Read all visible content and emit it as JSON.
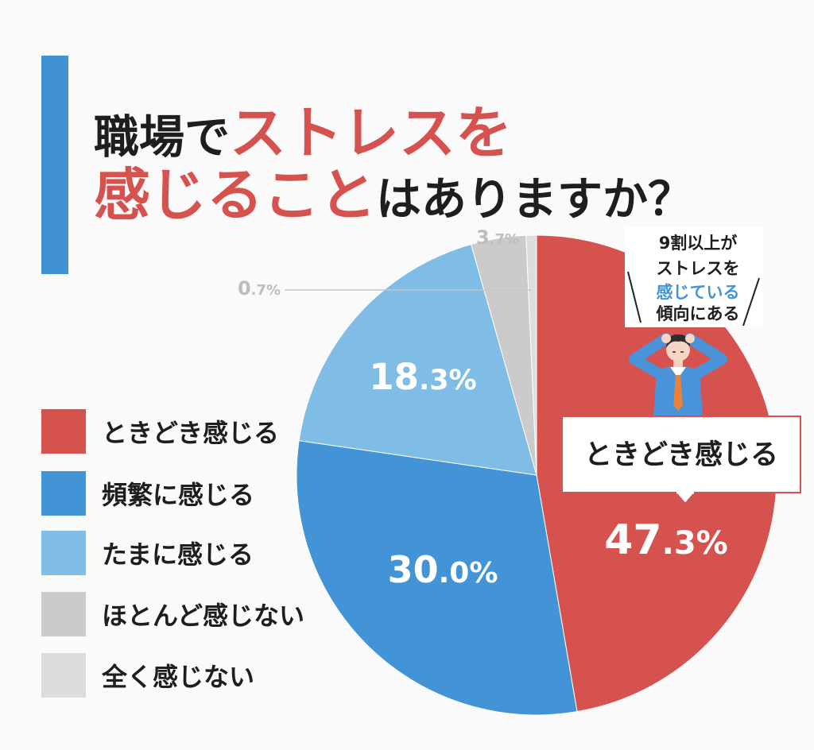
{
  "title": {
    "line1_black": "職場で",
    "line1_red": "ストレスを",
    "line2_red": "感じること",
    "line2_black": "はありますか？"
  },
  "colors": {
    "accent_bar": "#4192d3",
    "title_red": "#d6524f",
    "title_black": "#1e1e1e",
    "highlight_blue": "#4294d6",
    "callout_border": "#d6524f",
    "minor_label": "#bdbdbd"
  },
  "annotation": {
    "lines": [
      "9割以上が",
      "ストレスを",
      "感じている",
      "傾向にある"
    ],
    "highlight_line": 2
  },
  "illustration": {
    "icon": "stressed-businessman-icon"
  },
  "callout": {
    "label": "ときどき感じる"
  },
  "chart_data": {
    "type": "pie",
    "categories": [
      "ときどき感じる",
      "頻繁に感じる",
      "たまに感じる",
      "ほとんど感じない",
      "全く感じない"
    ],
    "values": [
      47.3,
      30.0,
      18.3,
      3.7,
      0.7
    ],
    "unit": "%",
    "colors": [
      "#d6524f",
      "#4294d6",
      "#7fbde6",
      "#cbcbcb",
      "#dddddd"
    ],
    "legend": "left"
  }
}
